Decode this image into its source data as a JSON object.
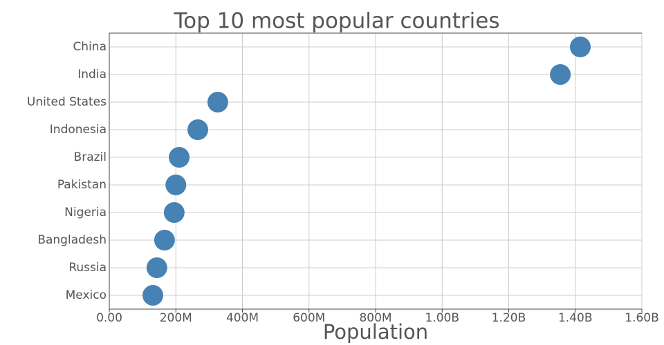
{
  "chart_data": {
    "type": "dot",
    "title": "Top 10 most popular countries",
    "x_label": "Population",
    "categories": [
      "China",
      "India",
      "United States",
      "Indonesia",
      "Brazil",
      "Pakistan",
      "Nigeria",
      "Bangladesh",
      "Russia",
      "Mexico"
    ],
    "values": [
      1415000000,
      1355000000,
      326000000,
      266000000,
      210000000,
      200000000,
      195000000,
      166000000,
      143000000,
      131000000
    ],
    "color": "#4682b4",
    "xlim": [
      0,
      1600000000
    ],
    "xticks": [
      {
        "value": 0,
        "label": "0.00"
      },
      {
        "value": 200000000,
        "label": "200M"
      },
      {
        "value": 400000000,
        "label": "400M"
      },
      {
        "value": 600000000,
        "label": "600M"
      },
      {
        "value": 800000000,
        "label": "800M"
      },
      {
        "value": 1000000000,
        "label": "1.00B"
      },
      {
        "value": 1200000000,
        "label": "1.20B"
      },
      {
        "value": 1400000000,
        "label": "1.40B"
      },
      {
        "value": 1600000000,
        "label": "1.60B"
      }
    ],
    "grid": true
  }
}
